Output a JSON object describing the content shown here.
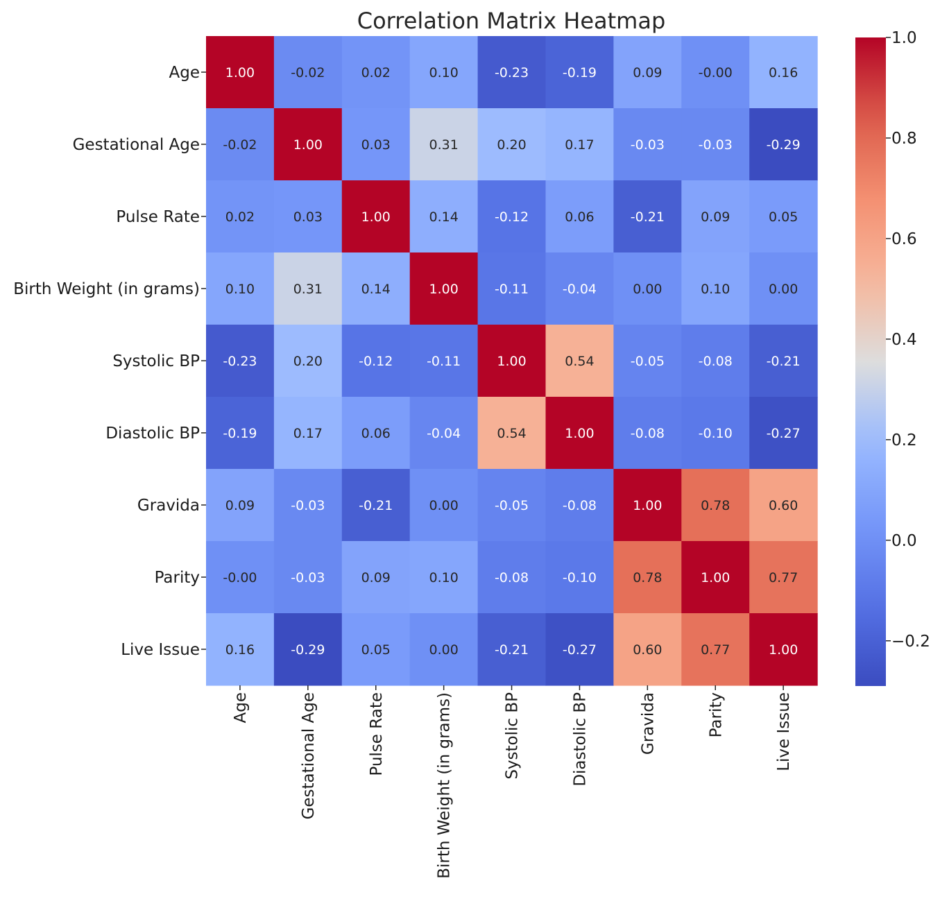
{
  "chart_data": {
    "type": "heatmap",
    "title": "Correlation Matrix Heatmap",
    "colormap": "coolwarm",
    "x_labels": [
      "Age",
      "Gestational Age",
      "Pulse Rate",
      "Birth Weight (in grams)",
      "Systolic BP",
      "Diastolic BP",
      "Gravida",
      "Parity",
      "Live Issue"
    ],
    "y_labels": [
      "Age",
      "Gestational Age",
      "Pulse Rate",
      "Birth Weight (in grams)",
      "Systolic BP",
      "Diastolic BP",
      "Gravida",
      "Parity",
      "Live Issue"
    ],
    "values": [
      [
        1.0,
        -0.02,
        0.02,
        0.1,
        -0.23,
        -0.19,
        0.09,
        -0.0,
        0.16
      ],
      [
        -0.02,
        1.0,
        0.03,
        0.31,
        0.2,
        0.17,
        -0.03,
        -0.03,
        -0.29
      ],
      [
        0.02,
        0.03,
        1.0,
        0.14,
        -0.12,
        0.06,
        -0.21,
        0.09,
        0.05
      ],
      [
        0.1,
        0.31,
        0.14,
        1.0,
        -0.11,
        -0.04,
        0.0,
        0.1,
        0.0
      ],
      [
        -0.23,
        0.2,
        -0.12,
        -0.11,
        1.0,
        0.54,
        -0.05,
        -0.08,
        -0.21
      ],
      [
        -0.19,
        0.17,
        0.06,
        -0.04,
        0.54,
        1.0,
        -0.08,
        -0.1,
        -0.27
      ],
      [
        0.09,
        -0.03,
        -0.21,
        0.0,
        -0.05,
        -0.08,
        1.0,
        0.78,
        0.6
      ],
      [
        -0.0,
        -0.03,
        0.09,
        0.1,
        -0.08,
        -0.1,
        0.78,
        1.0,
        0.77
      ],
      [
        0.16,
        -0.29,
        0.05,
        0.0,
        -0.21,
        -0.27,
        0.6,
        0.77,
        1.0
      ]
    ],
    "value_labels": [
      [
        "1.00",
        "-0.02",
        "0.02",
        "0.10",
        "-0.23",
        "-0.19",
        "0.09",
        "-0.00",
        "0.16"
      ],
      [
        "-0.02",
        "1.00",
        "0.03",
        "0.31",
        "0.20",
        "0.17",
        "-0.03",
        "-0.03",
        "-0.29"
      ],
      [
        "0.02",
        "0.03",
        "1.00",
        "0.14",
        "-0.12",
        "0.06",
        "-0.21",
        "0.09",
        "0.05"
      ],
      [
        "0.10",
        "0.31",
        "0.14",
        "1.00",
        "-0.11",
        "-0.04",
        "0.00",
        "0.10",
        "0.00"
      ],
      [
        "-0.23",
        "0.20",
        "-0.12",
        "-0.11",
        "1.00",
        "0.54",
        "-0.05",
        "-0.08",
        "-0.21"
      ],
      [
        "-0.19",
        "0.17",
        "0.06",
        "-0.04",
        "0.54",
        "1.00",
        "-0.08",
        "-0.10",
        "-0.27"
      ],
      [
        "0.09",
        "-0.03",
        "-0.21",
        "0.00",
        "-0.05",
        "-0.08",
        "1.00",
        "0.78",
        "0.60"
      ],
      [
        "-0.00",
        "-0.03",
        "0.09",
        "0.10",
        "-0.08",
        "-0.10",
        "0.78",
        "1.00",
        "0.77"
      ],
      [
        "0.16",
        "-0.29",
        "0.05",
        "0.00",
        "-0.21",
        "-0.27",
        "0.60",
        "0.77",
        "1.00"
      ]
    ],
    "color_range": [
      -0.29,
      1.0
    ],
    "colorbar_ticks": [
      1.0,
      0.8,
      0.6,
      0.4,
      0.2,
      0.0,
      -0.2
    ],
    "colorbar_tick_labels": [
      "1.0",
      "0.8",
      "0.6",
      "0.4",
      "0.2",
      "0.0",
      "−0.2"
    ],
    "grid": false,
    "legend": "colorbar-right"
  }
}
